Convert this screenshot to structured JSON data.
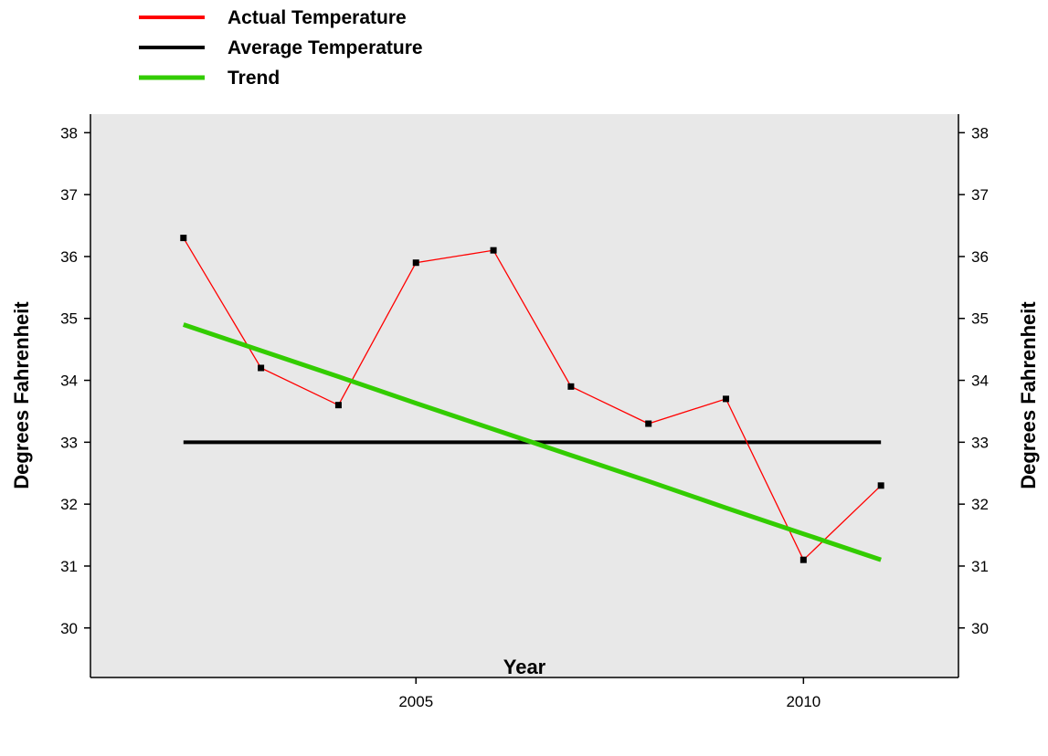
{
  "chart_data": {
    "type": "line",
    "x": [
      2002,
      2003,
      2004,
      2005,
      2006,
      2007,
      2008,
      2009,
      2010,
      2011
    ],
    "series": [
      {
        "name": "Actual Temperature",
        "color": "#ff0000",
        "values": [
          36.3,
          34.2,
          33.6,
          35.9,
          36.1,
          33.9,
          33.3,
          33.7,
          31.1,
          32.3
        ]
      },
      {
        "name": "Average Temperature",
        "color": "#000000",
        "values": [
          33.0,
          33.0,
          33.0,
          33.0,
          33.0,
          33.0,
          33.0,
          33.0,
          33.0,
          33.0
        ]
      },
      {
        "name": "Trend",
        "color": "#33cc00",
        "values": [
          34.9,
          34.48,
          34.06,
          33.63,
          33.21,
          32.79,
          32.37,
          31.94,
          31.52,
          31.1
        ]
      }
    ],
    "xlabel": "Year",
    "ylabel": "Degrees Fahrenheit",
    "xlim": [
      2000.8,
      2012.0
    ],
    "ylim": [
      29.2,
      38.3
    ],
    "xticks": [
      "2005",
      "2010"
    ],
    "yticks": [
      "30",
      "31",
      "32",
      "33",
      "34",
      "35",
      "36",
      "37",
      "38"
    ],
    "grid": false,
    "legend_position": "top-left, above plot",
    "plot_background": "#e8e8e8"
  }
}
